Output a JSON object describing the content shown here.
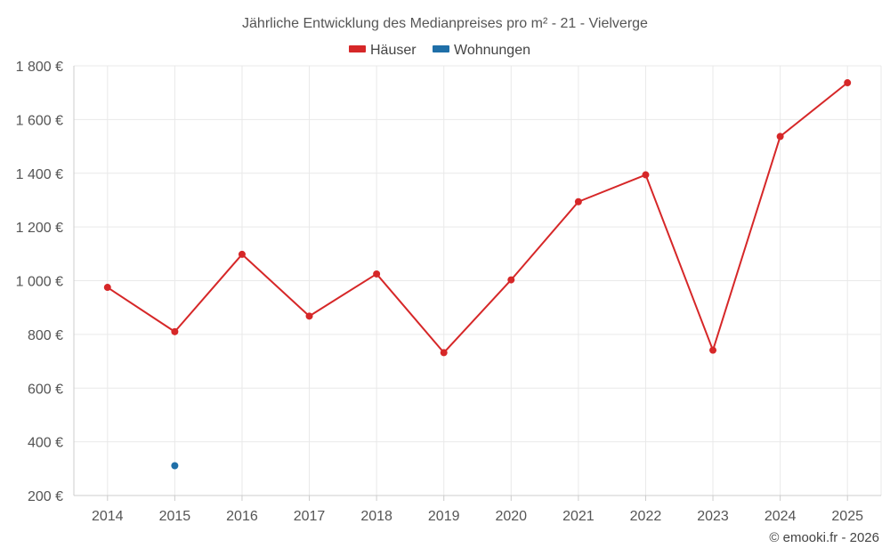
{
  "chart_data": {
    "type": "line",
    "title": "Jährliche Entwicklung des Medianpreises pro m² - 21 - Vielverge",
    "categories": [
      "2014",
      "2015",
      "2016",
      "2017",
      "2018",
      "2019",
      "2020",
      "2021",
      "2022",
      "2023",
      "2024",
      "2025"
    ],
    "ylim": [
      200,
      1800
    ],
    "yticks": [
      200,
      400,
      600,
      800,
      1000,
      1200,
      1400,
      1600,
      1800
    ],
    "ytick_labels": [
      "200 €",
      "400 €",
      "600 €",
      "800 €",
      "1 000 €",
      "1 200 €",
      "1 400 €",
      "1 600 €",
      "1 800 €"
    ],
    "grid": true,
    "legend_position": "top-center",
    "series": [
      {
        "name": "Häuser",
        "color": "#d62728",
        "values": [
          975,
          810,
          1098,
          868,
          1025,
          732,
          1003,
          1294,
          1394,
          741,
          1537,
          1737
        ]
      },
      {
        "name": "Wohnungen",
        "color": "#1f6fa8",
        "values": [
          null,
          311,
          null,
          null,
          null,
          null,
          null,
          null,
          null,
          null,
          null,
          null
        ]
      }
    ]
  },
  "credit": "© emooki.fr - 2026"
}
